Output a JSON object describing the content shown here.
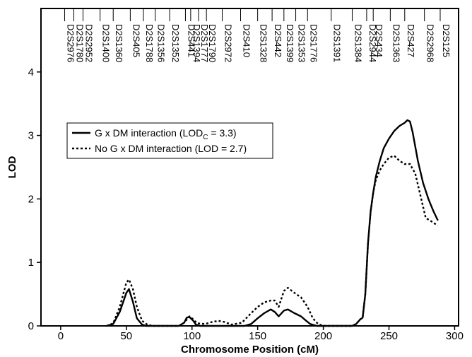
{
  "chart_data": {
    "type": "line",
    "xlabel": "Chromosome Position (cM)",
    "ylabel": "LOD",
    "xlim": [
      -15,
      303
    ],
    "ylim": [
      0,
      5
    ],
    "xticks": [
      0,
      50,
      100,
      150,
      200,
      250,
      300
    ],
    "yticks": [
      0,
      1,
      2,
      3,
      4
    ],
    "grid": false,
    "legend_position": "center-left",
    "markers": [
      {
        "name": "D2S2976",
        "pos": 3
      },
      {
        "name": "D2S1780",
        "pos": 10
      },
      {
        "name": "D2S2952",
        "pos": 17
      },
      {
        "name": "D2S1400",
        "pos": 30
      },
      {
        "name": "D2S1360",
        "pos": 40
      },
      {
        "name": "D2S405",
        "pos": 53
      },
      {
        "name": "D2S1788",
        "pos": 63
      },
      {
        "name": "D2S1356",
        "pos": 72
      },
      {
        "name": "D2S1352",
        "pos": 83
      },
      {
        "name": "D2S441",
        "pos": 95
      },
      {
        "name": "D2S1394",
        "pos": 99
      },
      {
        "name": "D2S1777",
        "pos": 105
      },
      {
        "name": "D2S1790",
        "pos": 111
      },
      {
        "name": "D2S2972",
        "pos": 123
      },
      {
        "name": "D2S410",
        "pos": 137
      },
      {
        "name": "D2S1328",
        "pos": 150
      },
      {
        "name": "D2S442",
        "pos": 161
      },
      {
        "name": "D2S1399",
        "pos": 170
      },
      {
        "name": "D2S1353",
        "pos": 179
      },
      {
        "name": "D2S1776",
        "pos": 188
      },
      {
        "name": "D2S1391",
        "pos": 206
      },
      {
        "name": "D2S1384",
        "pos": 222
      },
      {
        "name": "D2S2944",
        "pos": 233
      },
      {
        "name": "D2S434",
        "pos": 238
      },
      {
        "name": "D2S1363",
        "pos": 251
      },
      {
        "name": "D2S427",
        "pos": 262
      },
      {
        "name": "D2S2968",
        "pos": 277
      },
      {
        "name": "D2S125",
        "pos": 289
      }
    ],
    "series": [
      {
        "name": "G x DM interaction (LOD",
        "name_sub": "C",
        "name_suffix": " = 3.3)",
        "style": "solid",
        "x": [
          35,
          40,
          45,
          50,
          52,
          55,
          58,
          62,
          65,
          80,
          90,
          94,
          96,
          98,
          101,
          103,
          106,
          110,
          120,
          130,
          140,
          145,
          150,
          155,
          160,
          163,
          166,
          170,
          173,
          178,
          183,
          187,
          190,
          195,
          200,
          210,
          220,
          222,
          225,
          228,
          230,
          232,
          234,
          236,
          238,
          240,
          243,
          246,
          250,
          254,
          258,
          262,
          264,
          266,
          268,
          272,
          276,
          280,
          284,
          287
        ],
        "y": [
          0,
          0.03,
          0.22,
          0.52,
          0.58,
          0.38,
          0.12,
          0.02,
          0,
          0,
          0,
          0.05,
          0.13,
          0.14,
          0.08,
          0.02,
          0,
          0,
          0,
          0,
          0,
          0.03,
          0.12,
          0.2,
          0.26,
          0.22,
          0.15,
          0.24,
          0.26,
          0.2,
          0.15,
          0.08,
          0.03,
          0,
          0,
          0,
          0,
          0,
          0.03,
          0.1,
          0.13,
          0.5,
          1.3,
          1.8,
          2.1,
          2.35,
          2.6,
          2.8,
          2.95,
          3.07,
          3.15,
          3.2,
          3.24,
          3.22,
          3.05,
          2.6,
          2.25,
          2.0,
          1.8,
          1.67
        ]
      },
      {
        "name": "No G x DM interaction (LOD = 2.7)",
        "style": "dotted",
        "x": [
          35,
          40,
          45,
          50,
          52,
          55,
          58,
          62,
          66,
          70,
          80,
          90,
          94,
          96,
          98,
          100,
          104,
          110,
          115,
          120,
          125,
          130,
          138,
          145,
          150,
          155,
          160,
          163,
          166,
          170,
          173,
          178,
          183,
          188,
          192,
          196,
          200,
          210,
          220,
          222,
          225,
          228,
          230,
          232,
          234,
          236,
          238,
          240,
          243,
          246,
          250,
          254,
          258,
          262,
          266,
          270,
          274,
          278,
          282,
          287
        ],
        "y": [
          0,
          0.04,
          0.3,
          0.68,
          0.73,
          0.58,
          0.3,
          0.08,
          0.02,
          0,
          0,
          0,
          0.05,
          0.1,
          0.15,
          0.12,
          0.04,
          0.03,
          0.06,
          0.08,
          0.06,
          0.02,
          0.05,
          0.2,
          0.3,
          0.37,
          0.4,
          0.4,
          0.3,
          0.55,
          0.6,
          0.52,
          0.45,
          0.3,
          0.12,
          0.03,
          0,
          0,
          0,
          0,
          0.03,
          0.1,
          0.15,
          0.5,
          1.3,
          1.8,
          2.1,
          2.3,
          2.45,
          2.55,
          2.65,
          2.68,
          2.6,
          2.55,
          2.55,
          2.4,
          2.05,
          1.7,
          1.65,
          1.58
        ]
      }
    ]
  }
}
